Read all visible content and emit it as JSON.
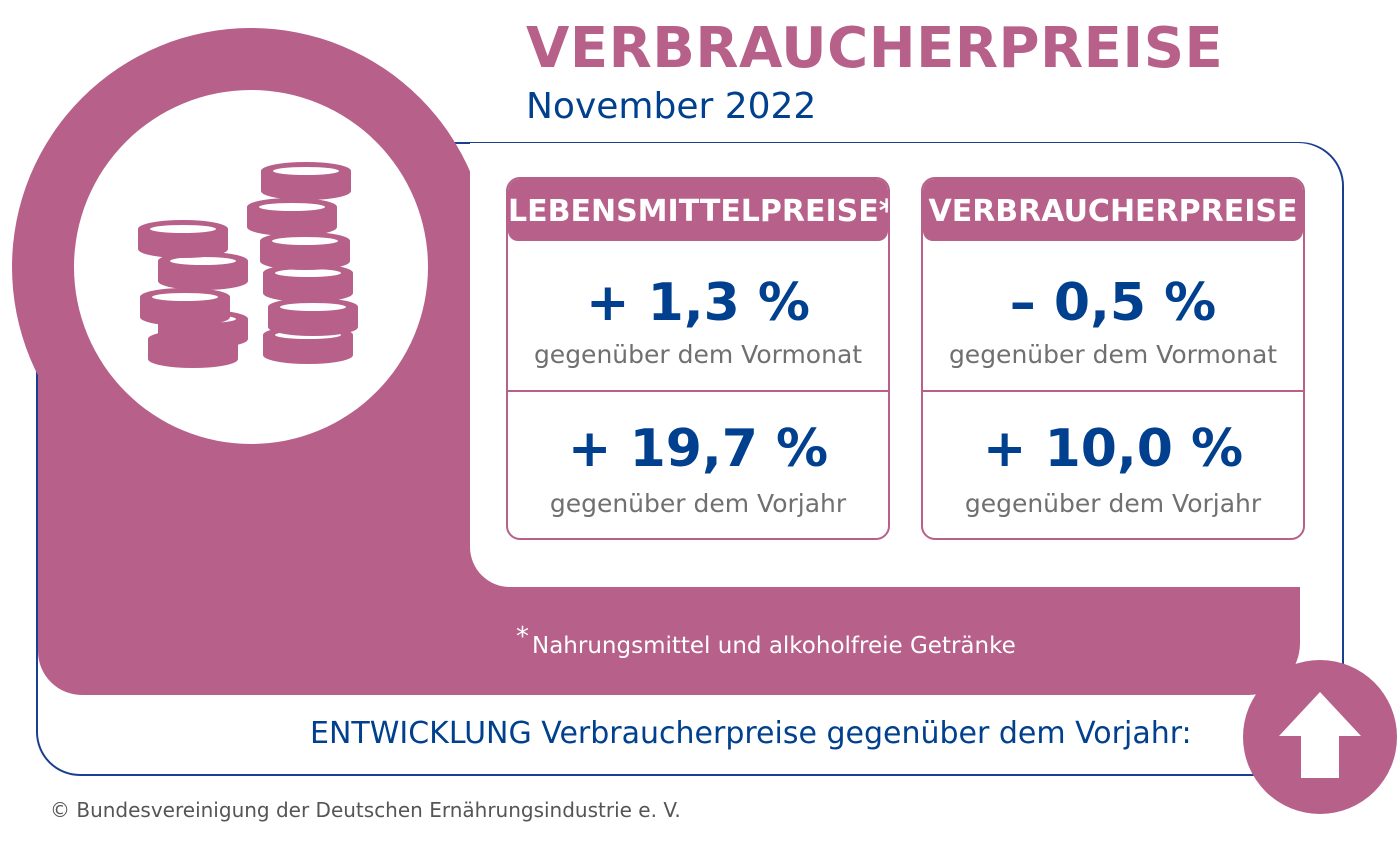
{
  "header": {
    "title": "VERBRAUCHERPREISE",
    "subtitle": "November 2022"
  },
  "cards": [
    {
      "heading": "LEBENSMITTELPREISE*",
      "monthly_value": "+ 1,3 %",
      "monthly_label": "gegenüber dem Vormonat",
      "yearly_value": "+ 19,7 %",
      "yearly_label": "gegenüber dem Vorjahr"
    },
    {
      "heading": "VERBRAUCHERPREISE",
      "monthly_value": "– 0,5 %",
      "monthly_label": "gegenüber dem Vormonat",
      "yearly_value": "+ 10,0 %",
      "yearly_label": "gegenüber dem Vorjahr"
    }
  ],
  "footnote": {
    "marker": "*",
    "text": "Nahrungsmittel und alkoholfreie Getränke"
  },
  "trend": {
    "text": "ENTWICKLUNG Verbraucherpreise gegenüber dem Vorjahr:",
    "direction_icon": "arrow-up-icon"
  },
  "icons": {
    "illustration": "coin-stacks-icon"
  },
  "copyright": "© Bundesvereinigung der Deutschen Ernährungsindustrie e. V.",
  "colors": {
    "accent_pink": "#b6608a",
    "brand_blue": "#00408e",
    "label_gray": "#707070"
  }
}
